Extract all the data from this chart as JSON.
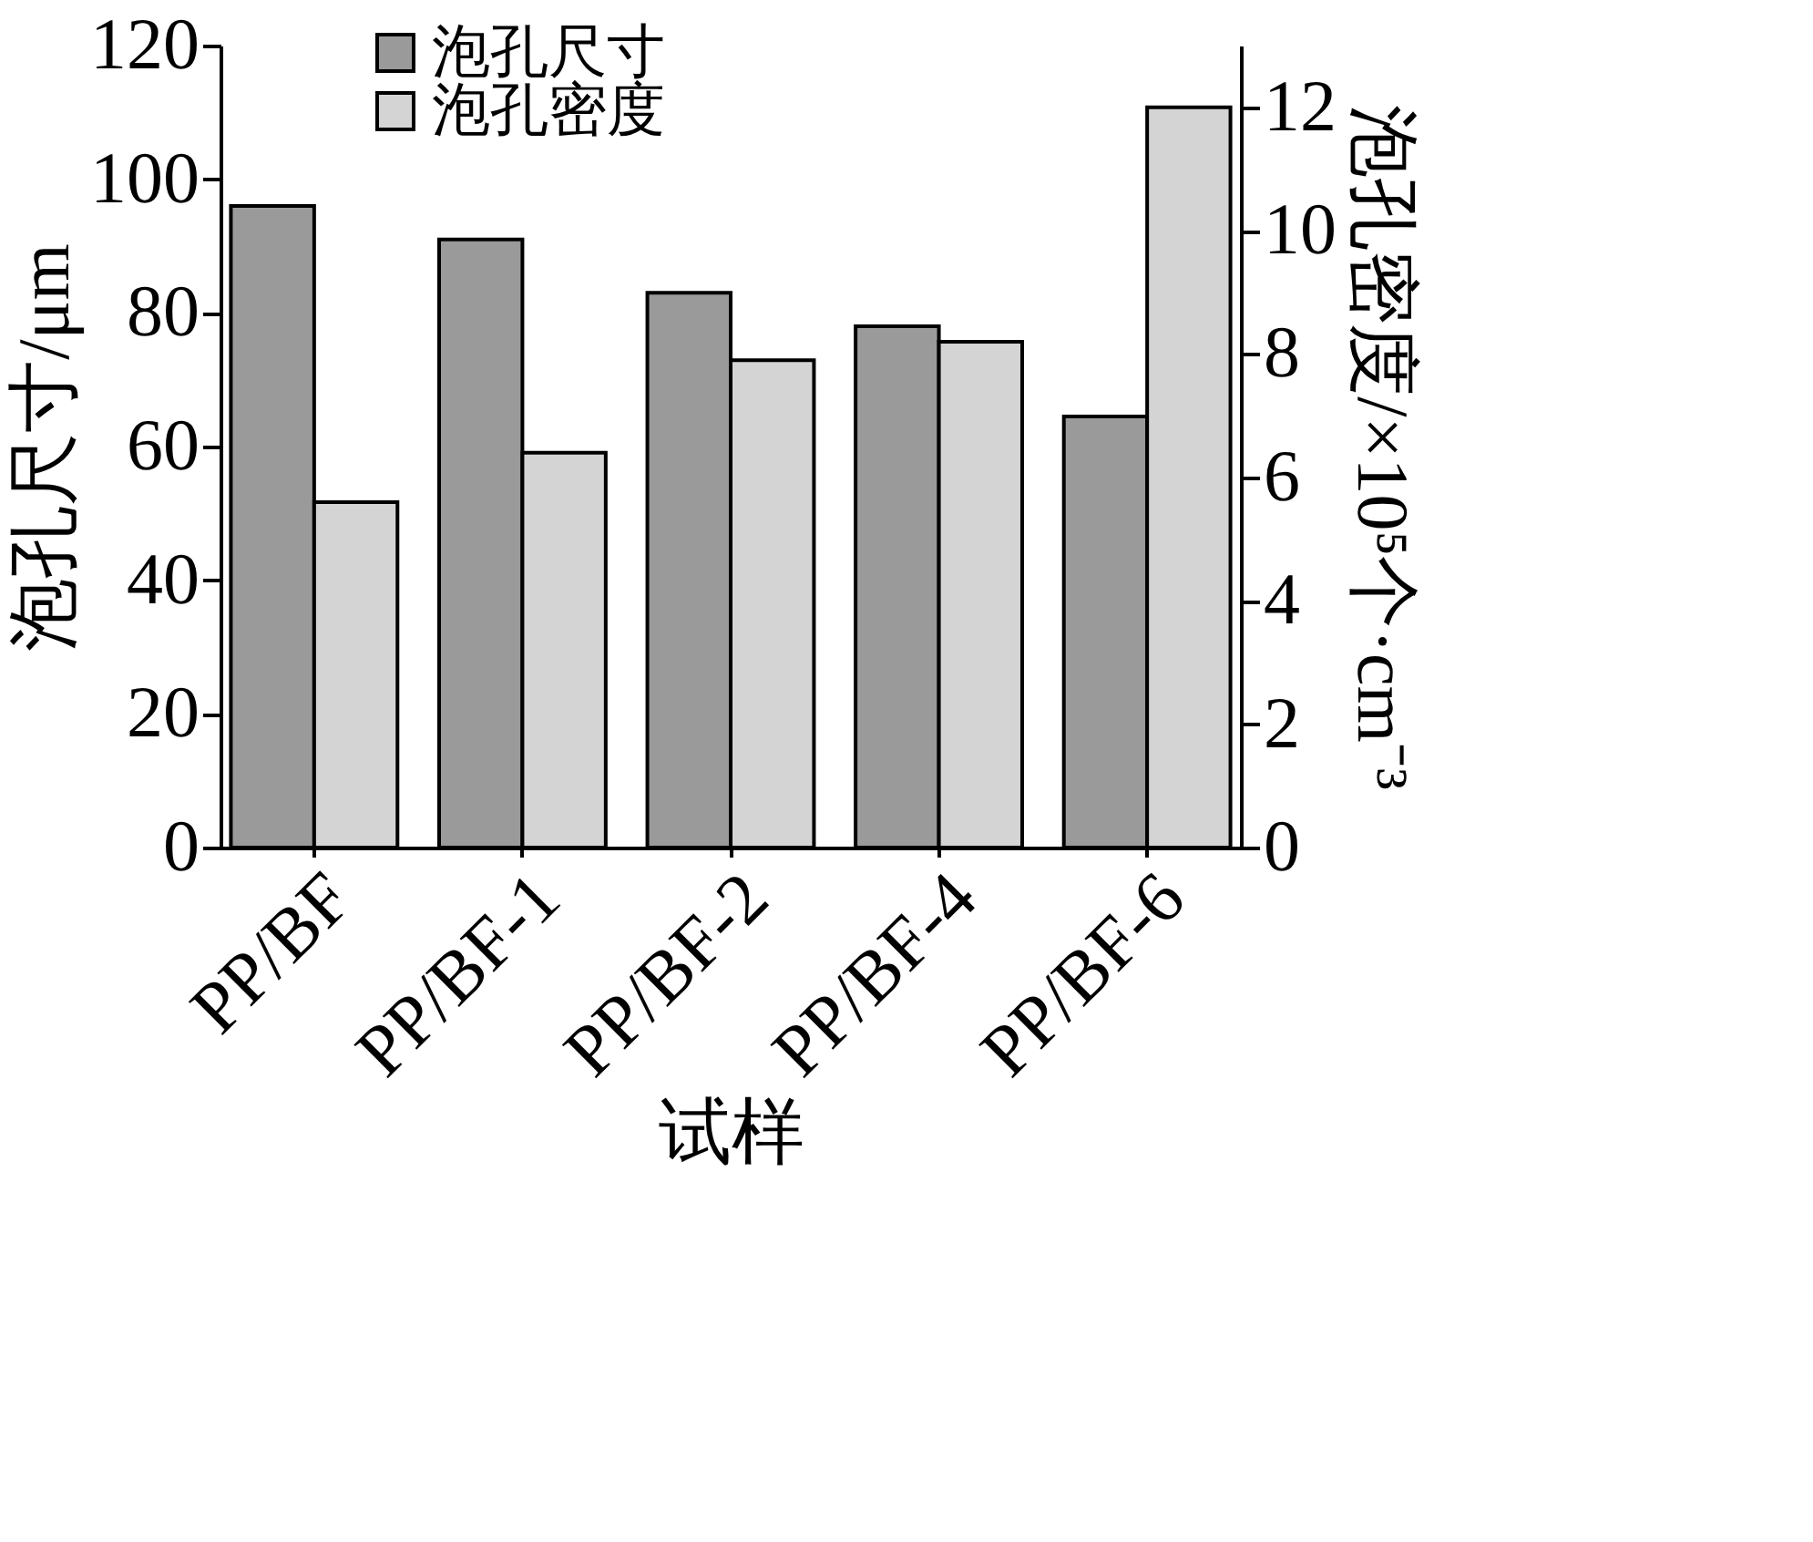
{
  "chart_data": {
    "type": "bar",
    "categories": [
      "PP/BF",
      "PP/BF-1",
      "PP/BF-2",
      "PP/BF-4",
      "PP/BF-6"
    ],
    "xlabel": "试样",
    "ylabel": "泡孔尺寸/μm",
    "y2label": "泡孔密度/×10⁵个·cm⁻³",
    "series": [
      {
        "name": "泡孔尺寸",
        "color": "#9a9a9a",
        "values": [
          96,
          91,
          83,
          78,
          64.5
        ]
      },
      {
        "name": "泡孔密度",
        "color": "#d4d4d4",
        "axis": "y2",
        "values": [
          5.6,
          6.4,
          7.9,
          8.2,
          12.0
        ]
      }
    ],
    "ylim": [
      0,
      120
    ],
    "yticks": [
      0,
      20,
      40,
      60,
      80,
      100,
      120
    ],
    "y2lim": [
      0,
      13
    ],
    "y2ticks": [
      0,
      2,
      4,
      6,
      8,
      10,
      12
    ],
    "legend": "top left",
    "grid": false
  }
}
